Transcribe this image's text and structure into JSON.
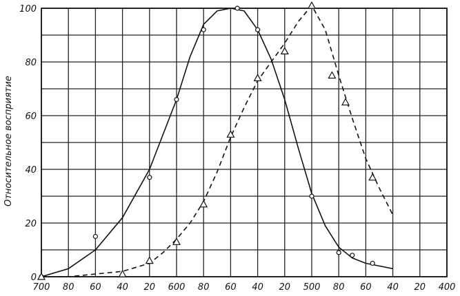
{
  "chart_data": {
    "type": "line",
    "title": "",
    "xlabel": "",
    "ylabel": "Относительное восприятие",
    "x_reversed": true,
    "xlim": [
      700,
      400
    ],
    "ylim": [
      0,
      100
    ],
    "x_tick_values": [
      700,
      680,
      660,
      640,
      620,
      600,
      580,
      560,
      540,
      520,
      500,
      480,
      460,
      440,
      420,
      400
    ],
    "x_tick_labels": [
      "700",
      "80",
      "60",
      "40",
      "20",
      "600",
      "80",
      "60",
      "40",
      "20",
      "500",
      "80",
      "60",
      "40",
      "20",
      "400"
    ],
    "y_tick_values": [
      0,
      20,
      40,
      60,
      80,
      100
    ],
    "y_tick_labels": [
      "0",
      "20",
      "40",
      "60",
      "80",
      "100"
    ],
    "grid": true,
    "legend": "none",
    "series": [
      {
        "line_style": "solid",
        "marker": "circle",
        "color": "#111111",
        "points": [
          [
            700,
            0
          ],
          [
            660,
            15
          ],
          [
            620,
            37
          ],
          [
            600,
            66
          ],
          [
            580,
            92
          ],
          [
            555,
            100
          ],
          [
            540,
            92
          ],
          [
            500,
            30
          ],
          [
            480,
            9
          ],
          [
            470,
            8
          ],
          [
            455,
            5
          ]
        ],
        "curve": [
          [
            700,
            0
          ],
          [
            680,
            3
          ],
          [
            660,
            10
          ],
          [
            640,
            22
          ],
          [
            620,
            40
          ],
          [
            600,
            66
          ],
          [
            590,
            82
          ],
          [
            580,
            94
          ],
          [
            570,
            99
          ],
          [
            560,
            100
          ],
          [
            550,
            99
          ],
          [
            540,
            92
          ],
          [
            530,
            81
          ],
          [
            520,
            66
          ],
          [
            510,
            48
          ],
          [
            500,
            31
          ],
          [
            490,
            19
          ],
          [
            480,
            11
          ],
          [
            470,
            7
          ],
          [
            460,
            5
          ],
          [
            450,
            4
          ],
          [
            440,
            3
          ]
        ]
      },
      {
        "line_style": "dashed",
        "marker": "triangle",
        "color": "#111111",
        "points": [
          [
            700,
            0
          ],
          [
            640,
            1
          ],
          [
            620,
            6
          ],
          [
            600,
            13
          ],
          [
            580,
            27
          ],
          [
            560,
            53
          ],
          [
            540,
            74
          ],
          [
            520,
            84
          ],
          [
            500,
            101
          ],
          [
            485,
            75
          ],
          [
            475,
            65
          ],
          [
            455,
            37
          ]
        ],
        "curve": [
          [
            700,
            0
          ],
          [
            680,
            0
          ],
          [
            660,
            1
          ],
          [
            640,
            2
          ],
          [
            620,
            5
          ],
          [
            610,
            9
          ],
          [
            600,
            14
          ],
          [
            590,
            20
          ],
          [
            580,
            28
          ],
          [
            570,
            39
          ],
          [
            560,
            52
          ],
          [
            550,
            63
          ],
          [
            540,
            73
          ],
          [
            530,
            80
          ],
          [
            520,
            87
          ],
          [
            510,
            95
          ],
          [
            500,
            101
          ],
          [
            490,
            92
          ],
          [
            480,
            75
          ],
          [
            470,
            59
          ],
          [
            460,
            44
          ],
          [
            450,
            33
          ],
          [
            440,
            23
          ]
        ]
      }
    ]
  }
}
